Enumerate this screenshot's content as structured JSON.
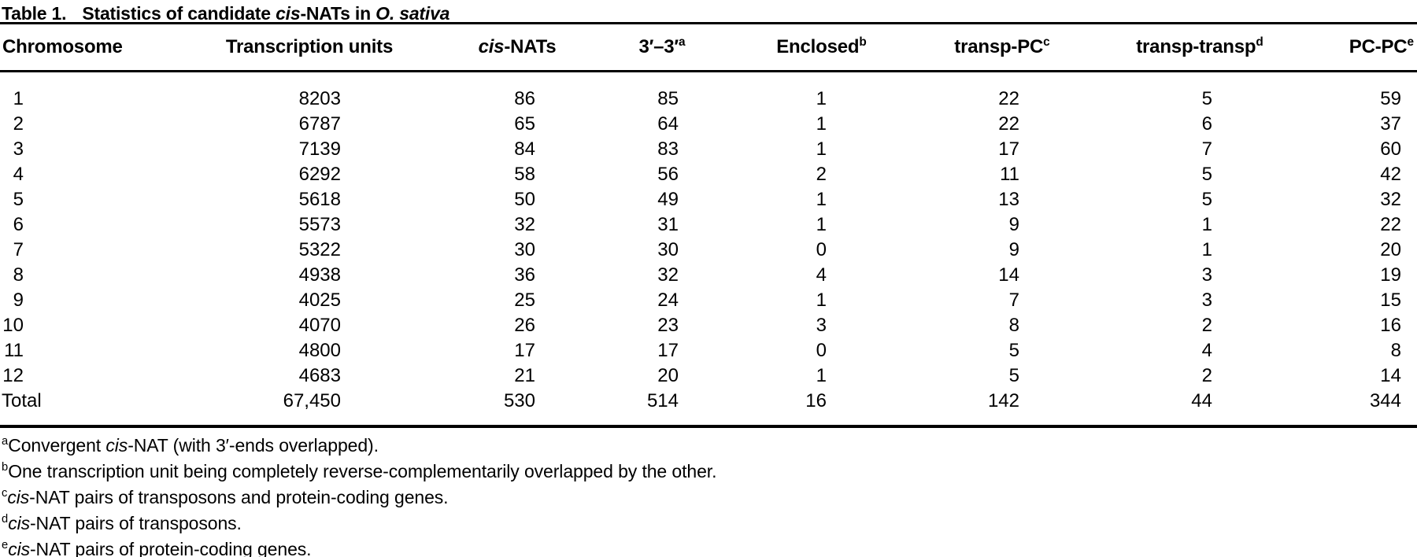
{
  "title": {
    "label": "Table 1.",
    "segments": [
      {
        "t": "Statistics of candidate "
      },
      {
        "t": "cis",
        "style": "italic"
      },
      {
        "t": "-NATs in "
      },
      {
        "t": "O. sativa",
        "style": "italic"
      }
    ]
  },
  "table": {
    "columns": [
      {
        "id": "chromosome",
        "segments": [
          {
            "t": "Chromosome"
          }
        ]
      },
      {
        "id": "transcription-units",
        "segments": [
          {
            "t": "Transcription units"
          }
        ]
      },
      {
        "id": "cis-nats",
        "segments": [
          {
            "t": "cis",
            "style": "italic"
          },
          {
            "t": "-NATs"
          }
        ]
      },
      {
        "id": "three-three",
        "segments": [
          {
            "t": "3′–3′"
          },
          {
            "t": "a",
            "style": "sup"
          }
        ]
      },
      {
        "id": "enclosed",
        "segments": [
          {
            "t": "Enclosed"
          },
          {
            "t": "b",
            "style": "sup"
          }
        ]
      },
      {
        "id": "transp-pc",
        "segments": [
          {
            "t": "transp-PC"
          },
          {
            "t": "c",
            "style": "sup"
          }
        ]
      },
      {
        "id": "transp-transp",
        "segments": [
          {
            "t": "transp-transp"
          },
          {
            "t": "d",
            "style": "sup"
          }
        ]
      },
      {
        "id": "pc-pc",
        "segments": [
          {
            "t": "PC-PC"
          },
          {
            "t": "e",
            "style": "sup"
          }
        ]
      }
    ],
    "rows": [
      [
        "1",
        "8203",
        "86",
        "85",
        "1",
        "22",
        "5",
        "59"
      ],
      [
        "2",
        "6787",
        "65",
        "64",
        "1",
        "22",
        "6",
        "37"
      ],
      [
        "3",
        "7139",
        "84",
        "83",
        "1",
        "17",
        "7",
        "60"
      ],
      [
        "4",
        "6292",
        "58",
        "56",
        "2",
        "11",
        "5",
        "42"
      ],
      [
        "5",
        "5618",
        "50",
        "49",
        "1",
        "13",
        "5",
        "32"
      ],
      [
        "6",
        "5573",
        "32",
        "31",
        "1",
        "9",
        "1",
        "22"
      ],
      [
        "7",
        "5322",
        "30",
        "30",
        "0",
        "9",
        "1",
        "20"
      ],
      [
        "8",
        "4938",
        "36",
        "32",
        "4",
        "14",
        "3",
        "19"
      ],
      [
        "9",
        "4025",
        "25",
        "24",
        "1",
        "7",
        "3",
        "15"
      ],
      [
        "10",
        "4070",
        "26",
        "23",
        "3",
        "8",
        "2",
        "16"
      ],
      [
        "11",
        "4800",
        "17",
        "17",
        "0",
        "5",
        "4",
        "8"
      ],
      [
        "12",
        "4683",
        "21",
        "20",
        "1",
        "5",
        "2",
        "14"
      ],
      [
        "Total",
        "67,450",
        "530",
        "514",
        "16",
        "142",
        "44",
        "344"
      ]
    ]
  },
  "footnotes": [
    {
      "segments": [
        {
          "t": "a",
          "style": "sup"
        },
        {
          "t": "Convergent "
        },
        {
          "t": "cis",
          "style": "italic"
        },
        {
          "t": "-NAT (with 3′-ends overlapped)."
        }
      ]
    },
    {
      "segments": [
        {
          "t": "b",
          "style": "sup"
        },
        {
          "t": "One transcription unit being completely reverse-complementarily overlapped by the other."
        }
      ]
    },
    {
      "segments": [
        {
          "t": "c",
          "style": "sup"
        },
        {
          "t": "cis",
          "style": "italic"
        },
        {
          "t": "-NAT pairs of transposons and protein-coding genes."
        }
      ]
    },
    {
      "segments": [
        {
          "t": "d",
          "style": "sup"
        },
        {
          "t": "cis",
          "style": "italic"
        },
        {
          "t": "-NAT pairs of transposons."
        }
      ]
    },
    {
      "segments": [
        {
          "t": "e",
          "style": "sup"
        },
        {
          "t": "cis",
          "style": "italic"
        },
        {
          "t": "-NAT pairs of protein-coding genes."
        }
      ]
    }
  ],
  "colors": {
    "text": "#000000",
    "background": "#ffffff",
    "rule": "#000000"
  }
}
